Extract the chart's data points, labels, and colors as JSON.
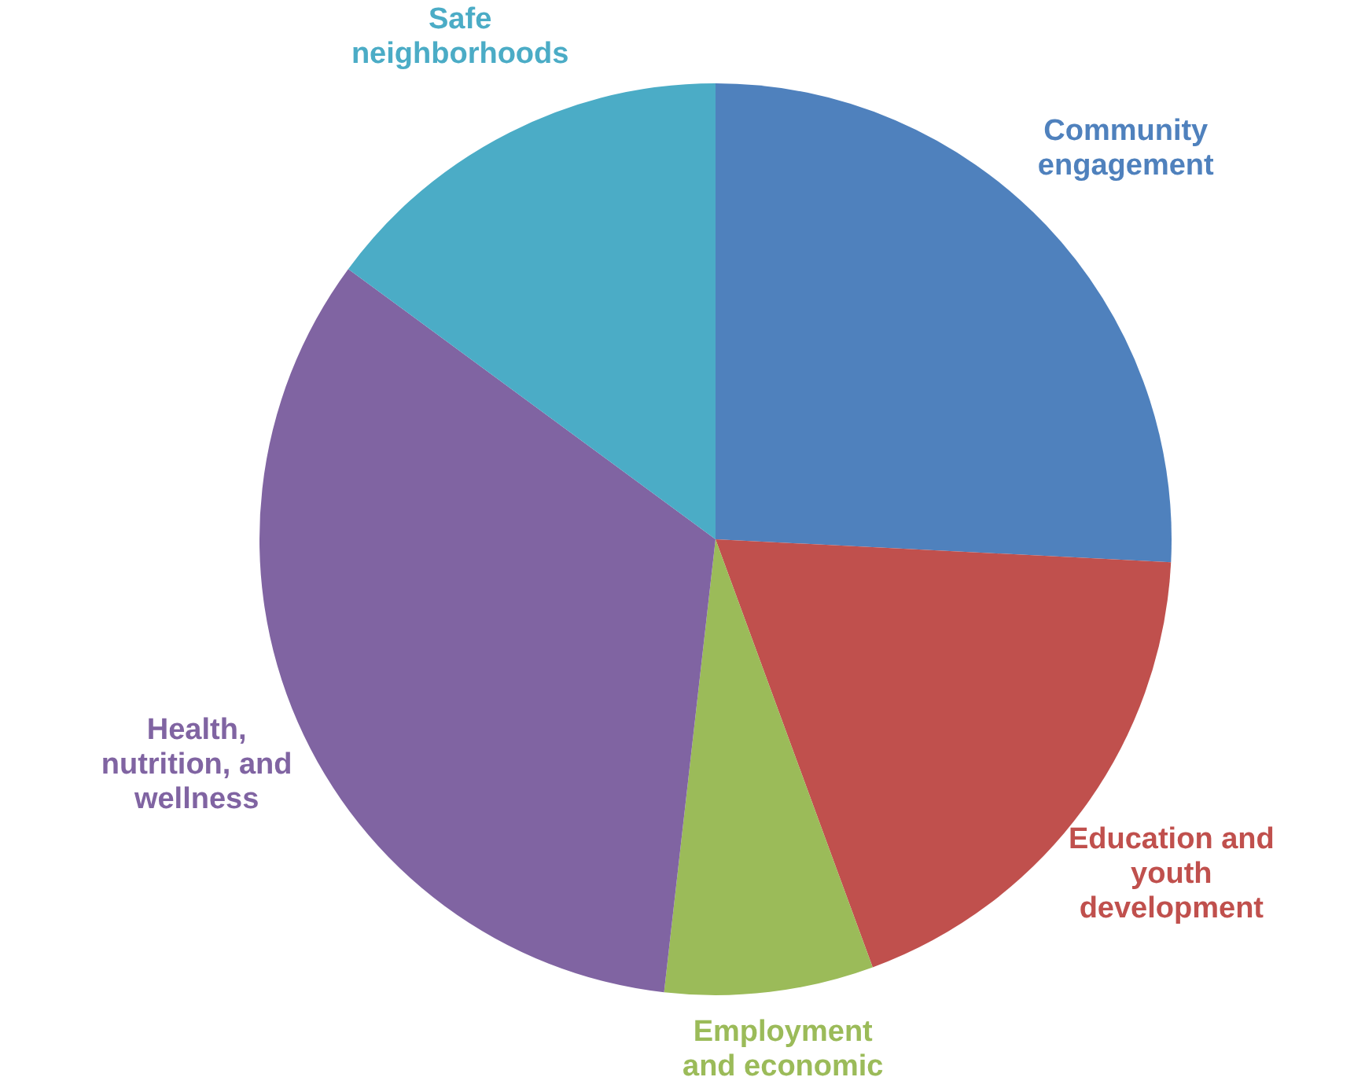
{
  "chart_data": {
    "type": "pie",
    "categories": [
      "Community engagement",
      "Education and youth development",
      "Employment and economic",
      "Health, nutrition, and wellness",
      "Safe neighborhoods"
    ],
    "values": [
      25.8,
      18.6,
      7.4,
      33.3,
      14.9
    ],
    "colors": [
      "#4f81bd",
      "#c0504d",
      "#9bbb59",
      "#8064a2",
      "#4bacc6"
    ],
    "legend": false
  }
}
